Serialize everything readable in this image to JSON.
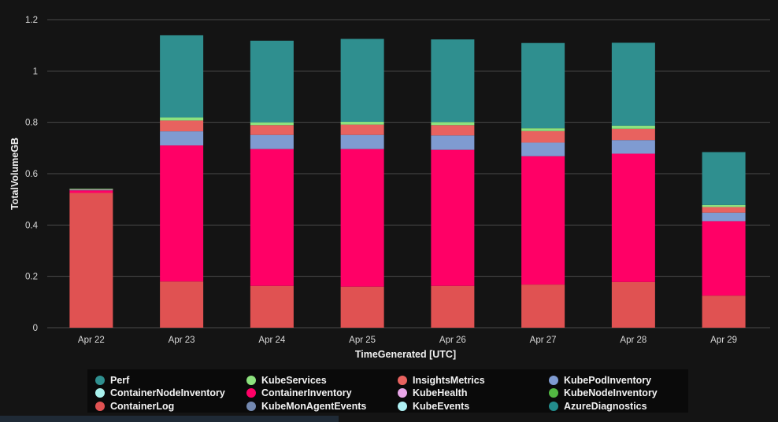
{
  "chart_data": {
    "type": "bar",
    "stacked": true,
    "xlabel": "TimeGenerated [UTC]",
    "ylabel": "TotalVolumeGB",
    "ylim": [
      0,
      1.2
    ],
    "yticks": [
      "0",
      "0.2",
      "0.4",
      "0.6",
      "0.8",
      "1",
      "1.2"
    ],
    "grid": true,
    "legend_position": "bottom",
    "categories": [
      "Apr 22",
      "Apr 23",
      "Apr 24",
      "Apr 25",
      "Apr 26",
      "Apr 27",
      "Apr 28",
      "Apr 29"
    ],
    "series": [
      {
        "name": "ContainerLog",
        "color": "#e05252",
        "values": [
          0.525,
          0.18,
          0.163,
          0.16,
          0.163,
          0.168,
          0.178,
          0.125
        ]
      },
      {
        "name": "ContainerInventory",
        "color": "#ff0066",
        "values": [
          0.01,
          0.53,
          0.533,
          0.536,
          0.53,
          0.5,
          0.5,
          0.29
        ]
      },
      {
        "name": "KubeMonAgentEvents",
        "color": "#7388b0",
        "values": [
          0.0,
          0.0,
          0.0,
          0.0,
          0.0,
          0.0,
          0.0,
          0.0
        ]
      },
      {
        "name": "KubePodInventory",
        "color": "#7f9bd1",
        "values": [
          0.003,
          0.055,
          0.055,
          0.055,
          0.056,
          0.053,
          0.053,
          0.033
        ]
      },
      {
        "name": "InsightsMetrics",
        "color": "#e8625f",
        "values": [
          0.002,
          0.042,
          0.038,
          0.04,
          0.04,
          0.045,
          0.044,
          0.022
        ]
      },
      {
        "name": "KubeServices",
        "color": "#8de27e",
        "values": [
          0.001,
          0.012,
          0.011,
          0.011,
          0.012,
          0.011,
          0.012,
          0.008
        ]
      },
      {
        "name": "Perf",
        "color": "#2f8f8f",
        "values": [
          0.0,
          0.32,
          0.318,
          0.323,
          0.322,
          0.332,
          0.323,
          0.206
        ]
      },
      {
        "name": "ContainerNodeInventory",
        "color": "#a8f0ec",
        "values": [
          0,
          0,
          0,
          0,
          0,
          0,
          0,
          0
        ]
      },
      {
        "name": "KubeHealth",
        "color": "#e9a6e8",
        "values": [
          0,
          0,
          0,
          0,
          0,
          0,
          0,
          0
        ]
      },
      {
        "name": "KubeNodeInventory",
        "color": "#52b842",
        "values": [
          0,
          0,
          0,
          0,
          0,
          0,
          0,
          0
        ]
      },
      {
        "name": "KubeEvents",
        "color": "#aef0f4",
        "values": [
          0,
          0,
          0,
          0,
          0,
          0,
          0,
          0
        ]
      },
      {
        "name": "AzureDiagnostics",
        "color": "#238c8c",
        "values": [
          0,
          0,
          0,
          0,
          0,
          0,
          0,
          0
        ]
      }
    ]
  },
  "legend": [
    {
      "label": "Perf",
      "color": "#2f8f8f"
    },
    {
      "label": "KubeServices",
      "color": "#8de27e"
    },
    {
      "label": "InsightsMetrics",
      "color": "#e8625f"
    },
    {
      "label": "KubePodInventory",
      "color": "#7f9bd1"
    },
    {
      "label": "ContainerNodeInventory",
      "color": "#a8f0ec"
    },
    {
      "label": "ContainerInventory",
      "color": "#ff0066"
    },
    {
      "label": "KubeHealth",
      "color": "#e9a6e8"
    },
    {
      "label": "KubeNodeInventory",
      "color": "#52b842"
    },
    {
      "label": "ContainerLog",
      "color": "#e05252"
    },
    {
      "label": "KubeMonAgentEvents",
      "color": "#7388b0"
    },
    {
      "label": "KubeEvents",
      "color": "#aef0f4"
    },
    {
      "label": "AzureDiagnostics",
      "color": "#238c8c"
    }
  ]
}
